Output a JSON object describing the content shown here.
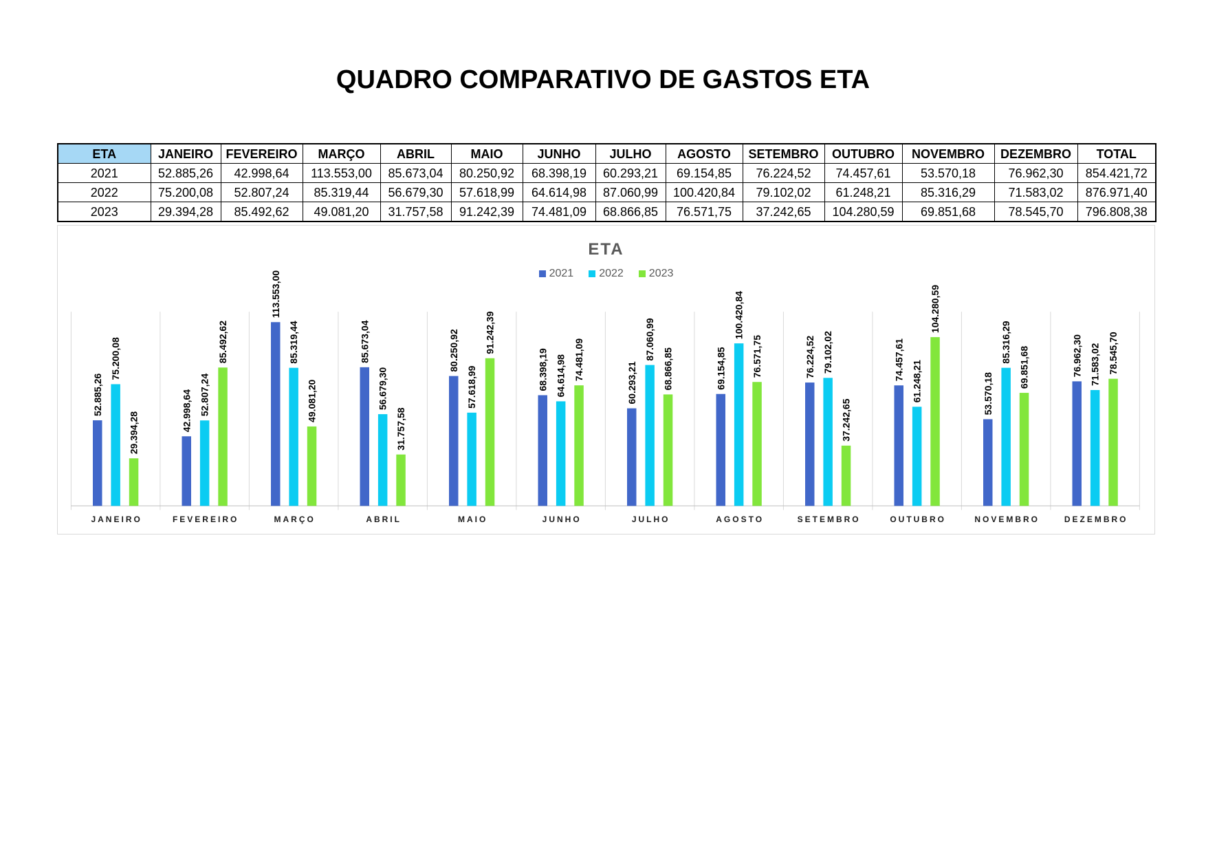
{
  "title": "QUADRO COMPARATIVO DE GASTOS ETA",
  "table": {
    "header_label": "ETA",
    "months": [
      "JANEIRO",
      "FEVEREIRO",
      "MARÇO",
      "ABRIL",
      "MAIO",
      "JUNHO",
      "JULHO",
      "AGOSTO",
      "SETEMBRO",
      "OUTUBRO",
      "NOVEMBRO",
      "DEZEMBRO"
    ],
    "total_label": "TOTAL",
    "header_highlight_color": "#A6D8F5",
    "rows": [
      {
        "year": "2021",
        "values": [
          "52.885,26",
          "42.998,64",
          "113.553,00",
          "85.673,04",
          "80.250,92",
          "68.398,19",
          "60.293,21",
          "69.154,85",
          "76.224,52",
          "74.457,61",
          "53.570,18",
          "76.962,30"
        ],
        "total": "854.421,72"
      },
      {
        "year": "2022",
        "values": [
          "75.200,08",
          "52.807,24",
          "85.319,44",
          "56.679,30",
          "57.618,99",
          "64.614,98",
          "87.060,99",
          "100.420,84",
          "79.102,02",
          "61.248,21",
          "85.316,29",
          "71.583,02"
        ],
        "total": "876.971,40"
      },
      {
        "year": "2023",
        "values": [
          "29.394,28",
          "85.492,62",
          "49.081,20",
          "31.757,58",
          "91.242,39",
          "74.481,09",
          "68.866,85",
          "76.571,75",
          "37.242,65",
          "104.280,59",
          "69.851,68",
          "78.545,70"
        ],
        "total": "796.808,38"
      }
    ]
  },
  "chart_data": {
    "type": "bar",
    "title": "ETA",
    "categories": [
      "JANEIRO",
      "FEVEREIRO",
      "MARÇO",
      "ABRIL",
      "MAIO",
      "JUNHO",
      "JULHO",
      "AGOSTO",
      "SETEMBRO",
      "OUTUBRO",
      "NOVEMBRO",
      "DEZEMBRO"
    ],
    "series": [
      {
        "name": "2021",
        "color": "#4167C9",
        "values": [
          52885.26,
          42998.64,
          113553.0,
          85673.04,
          80250.92,
          68398.19,
          60293.21,
          69154.85,
          76224.52,
          74457.61,
          53570.18,
          76962.3
        ],
        "data_labels": [
          "52.885,26",
          "42.998,64",
          "113.553,00",
          "85.673,04",
          "80.250,92",
          "68.398,19",
          "60.293,21",
          "69.154,85",
          "76.224,52",
          "74.457,61",
          "53.570,18",
          "76.962,30"
        ]
      },
      {
        "name": "2022",
        "color": "#0BCCF2",
        "values": [
          75200.08,
          52807.24,
          85319.44,
          56679.3,
          57618.99,
          64614.98,
          87060.99,
          100420.84,
          79102.02,
          61248.21,
          85316.29,
          71583.02
        ],
        "data_labels": [
          "75.200,08",
          "52.807,24",
          "85.319,44",
          "56.679,30",
          "57.618,99",
          "64.614,98",
          "87.060,99",
          "100.420,84",
          "79.102,02",
          "61.248,21",
          "85.316,29",
          "71.583,02"
        ]
      },
      {
        "name": "2023",
        "color": "#82E63C",
        "values": [
          29394.28,
          85492.62,
          49081.2,
          31757.58,
          91242.39,
          74481.09,
          68866.85,
          76571.75,
          37242.65,
          104280.59,
          69851.68,
          78545.7
        ],
        "data_labels": [
          "29.394,28",
          "85.492,62",
          "49.081,20",
          "31.757,58",
          "91.242,39",
          "74.481,09",
          "68.866,85",
          "76.571,75",
          "37.242,65",
          "104.280,59",
          "69.851,68",
          "78.545,70"
        ]
      }
    ],
    "ylim": [
      0,
      120000
    ],
    "grid": "vertical",
    "legend": "top"
  }
}
